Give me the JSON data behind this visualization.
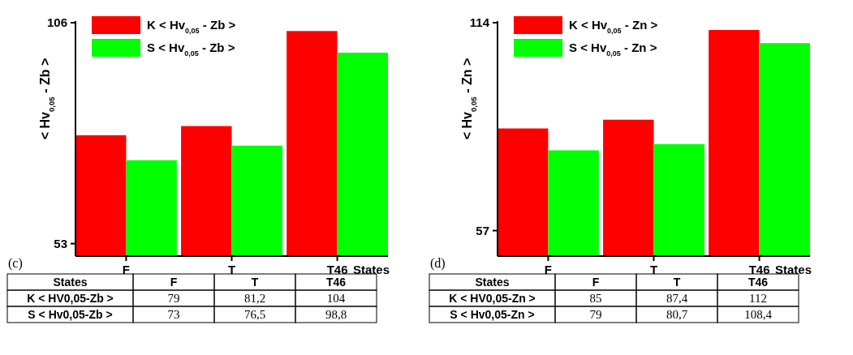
{
  "chart_data": [
    {
      "type": "bar",
      "ylabel": "< Hv$_{0,05}$ - Zb >",
      "xlabel": "States",
      "categories": [
        "F",
        "T",
        "T46"
      ],
      "ylim": [
        50,
        106
      ],
      "yticks": [
        53,
        106
      ],
      "legend": "top left",
      "annotations": [
        "(c)",
        "K < HV0,05-Zb >",
        "S < Hv0,05-Zb >"
      ],
      "series": [
        {
          "name": "K < Hv$_{0,05}$ - Zb >",
          "color": "#ff0000",
          "values": [
            79,
            81.2,
            104
          ],
          "value_labels": [
            "79",
            "81,2",
            "104"
          ]
        },
        {
          "name": "S < Hv$_{0,05}$ - Zb >",
          "color": "#00ff00",
          "values": [
            73,
            76.5,
            98.8
          ],
          "value_labels": [
            "73",
            "76,5",
            "98,8"
          ]
        }
      ]
    },
    {
      "type": "bar",
      "ylabel": "< Hv$_{0,05}$ - Zn >",
      "xlabel": "States",
      "categories": [
        "F",
        "T",
        "T46"
      ],
      "ylim": [
        50,
        114
      ],
      "yticks": [
        57,
        114
      ],
      "legend": "top left",
      "annotations": [
        "(d)",
        "K < HV0,05-Zn >",
        "S < Hv0,05-Zn >"
      ],
      "series": [
        {
          "name": "K < Hv$_{0,05}$ - Zn >",
          "color": "#ff0000",
          "values": [
            85,
            87.4,
            112
          ],
          "value_labels": [
            "85",
            "87,4",
            "112"
          ]
        },
        {
          "name": "S < Hv$_{0,05}$ - Zn >",
          "color": "#00ff00",
          "values": [
            79,
            80.7,
            108.4
          ],
          "value_labels": [
            "79",
            "80,7",
            "108,4"
          ]
        }
      ]
    }
  ]
}
